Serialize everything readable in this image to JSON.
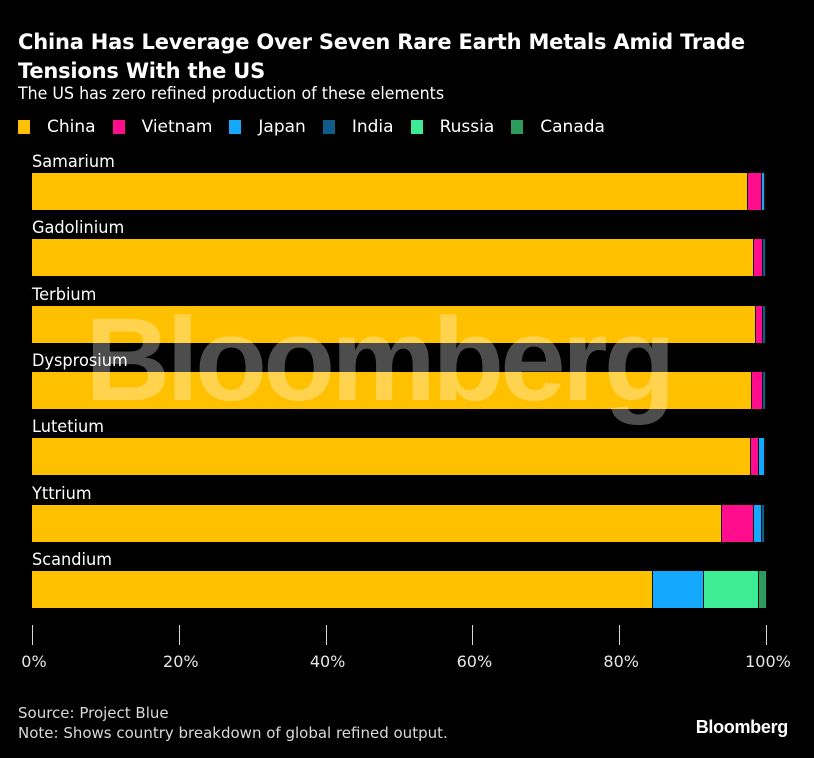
{
  "header": {
    "title": "China Has Leverage Over Seven Rare Earth Metals Amid Trade Tensions With the US",
    "subtitle": "The US has zero refined production of these elements"
  },
  "legend": [
    {
      "label": "China",
      "color": "#FFC000"
    },
    {
      "label": "Vietnam",
      "color": "#FF0D8C"
    },
    {
      "label": "Japan",
      "color": "#14A9FF"
    },
    {
      "label": "India",
      "color": "#0F5B8A"
    },
    {
      "label": "Russia",
      "color": "#3DEC94"
    },
    {
      "label": "Canada",
      "color": "#2E9B5E"
    }
  ],
  "footer": {
    "source": "Source: Project Blue",
    "note": "Note: Shows country breakdown of global refined output.",
    "brand": "Bloomberg"
  },
  "watermark": "Bloomberg",
  "chart_data": {
    "type": "bar",
    "orientation": "horizontal",
    "stacked": true,
    "title": "China Has Leverage Over Seven Rare Earth Metals Amid Trade Tensions With the US",
    "subtitle": "The US has zero refined production of these elements",
    "xlabel": "",
    "ylabel": "",
    "xlim": [
      0,
      100
    ],
    "x_ticks": [
      "0%",
      "20%",
      "40%",
      "60%",
      "80%",
      "100%"
    ],
    "x_tick_values": [
      0,
      20,
      40,
      60,
      80,
      100
    ],
    "grid": false,
    "legend_position": "top-left",
    "categories": [
      "Samarium",
      "Gadolinium",
      "Terbium",
      "Dysprosium",
      "Lutetium",
      "Yttrium",
      "Scandium"
    ],
    "series": [
      {
        "name": "China",
        "color": "#FFC000",
        "values": [
          97.5,
          98.4,
          98.6,
          98.1,
          98.0,
          94.0,
          84.6
        ]
      },
      {
        "name": "Vietnam",
        "color": "#FF0D8C",
        "values": [
          2.0,
          1.2,
          1.0,
          1.5,
          1.0,
          4.3,
          0
        ]
      },
      {
        "name": "Japan",
        "color": "#14A9FF",
        "values": [
          0.3,
          0,
          0,
          0,
          0.8,
          1.2,
          7.0
        ]
      },
      {
        "name": "India",
        "color": "#0F5B8A",
        "values": [
          0.2,
          0.4,
          0.4,
          0.4,
          0.2,
          0.4,
          0
        ]
      },
      {
        "name": "Russia",
        "color": "#3DEC94",
        "values": [
          0,
          0,
          0,
          0,
          0,
          0,
          7.4
        ]
      },
      {
        "name": "Canada",
        "color": "#2E9B5E",
        "values": [
          0,
          0,
          0,
          0,
          0,
          0,
          1.2
        ]
      }
    ],
    "source": "Source: Project Blue",
    "note": "Note: Shows country breakdown of global refined output."
  }
}
